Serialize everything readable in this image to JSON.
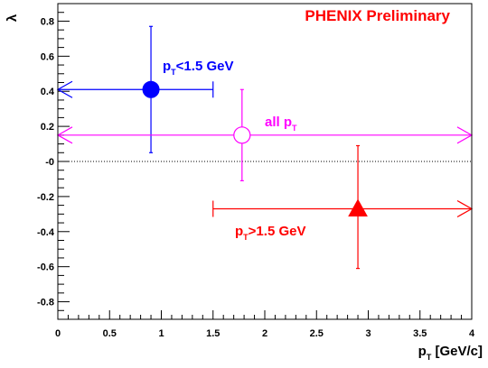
{
  "chart_data": {
    "type": "scatter",
    "title": "PHENIX Preliminary",
    "xlabel": "p_T [GeV/c]",
    "ylabel": "λ",
    "xlim": [
      0,
      4
    ],
    "ylim": [
      -0.9,
      0.9
    ],
    "x_ticks": [
      "0",
      "0.5",
      "1",
      "1.5",
      "2",
      "2.5",
      "3",
      "3.5",
      "4"
    ],
    "y_ticks": [
      "-0.8",
      "-0.6",
      "-0.4",
      "-0.2",
      "-0",
      "0.2",
      "0.4",
      "0.6",
      "0.8"
    ],
    "reference_line": {
      "y": 0,
      "style": "dotted"
    },
    "series": [
      {
        "name": "p_T<1.5 GeV",
        "color": "#0000ff",
        "marker": "filled-circle",
        "points": [
          {
            "x": 0.9,
            "y": 0.41,
            "y_err_low": 0.36,
            "y_err_high": 0.36,
            "x_range": [
              0.0,
              1.5
            ],
            "x_range_open_low": true
          }
        ]
      },
      {
        "name": "all p_T",
        "color": "#ff00ff",
        "marker": "open-circle",
        "points": [
          {
            "x": 1.78,
            "y": 0.15,
            "y_err_low": 0.26,
            "y_err_high": 0.26,
            "x_range": [
              0.0,
              4.0
            ],
            "x_range_open_low": true,
            "x_range_open_high": true
          }
        ]
      },
      {
        "name": "p_T>1.5 GeV",
        "color": "#ff0000",
        "marker": "filled-triangle",
        "points": [
          {
            "x": 2.9,
            "y": -0.27,
            "y_err_low": 0.34,
            "y_err_high": 0.36,
            "x_range": [
              1.5,
              4.0
            ],
            "x_range_open_high": true
          }
        ]
      }
    ]
  }
}
